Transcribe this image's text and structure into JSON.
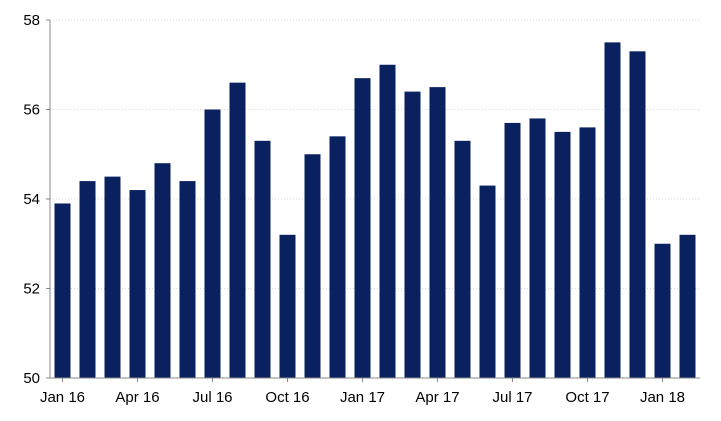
{
  "chart_data": {
    "type": "bar",
    "title": "",
    "xlabel": "",
    "ylabel": "",
    "ylim": [
      50,
      58
    ],
    "yticks": [
      50,
      52,
      54,
      56,
      58
    ],
    "grid": true,
    "bar_color": "#0a2160",
    "categories": [
      "Jan 16",
      "Feb 16",
      "Mar 16",
      "Apr 16",
      "May 16",
      "Jun 16",
      "Jul 16",
      "Aug 16",
      "Sep 16",
      "Oct 16",
      "Nov 16",
      "Dec 16",
      "Jan 17",
      "Feb 17",
      "Mar 17",
      "Apr 17",
      "May 17",
      "Jun 17",
      "Jul 17",
      "Aug 17",
      "Sep 17",
      "Oct 17",
      "Nov 17",
      "Dec 17",
      "Jan 18",
      "Feb 18"
    ],
    "x_tick_labels": [
      "Jan 16",
      "Apr 16",
      "Jul 16",
      "Oct 16",
      "Jan 17",
      "Apr 17",
      "Jul 17",
      "Oct 17",
      "Jan 18"
    ],
    "values": [
      53.9,
      54.4,
      54.5,
      54.2,
      54.8,
      54.4,
      56.0,
      56.6,
      55.3,
      53.2,
      55.0,
      55.4,
      56.7,
      57.0,
      56.4,
      56.5,
      55.3,
      54.3,
      55.7,
      55.8,
      55.5,
      55.6,
      57.5,
      57.3,
      53.0,
      53.2
    ]
  }
}
